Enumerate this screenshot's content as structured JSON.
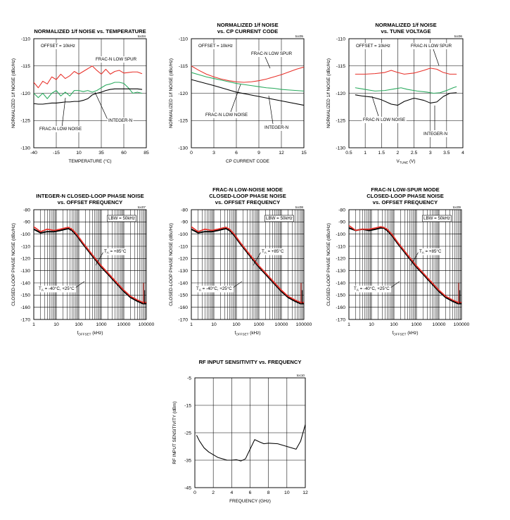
{
  "chart_data": [
    {
      "id": "toc04",
      "type": "line",
      "code": "toc04",
      "title_lines": [
        "NORMALIZED 1/f NOISE vs. TEMPERATURE"
      ],
      "xlabel": "TEMPERATURE (°C)",
      "ylabel": "NORMALIZED 1/f NOISE (dBc/Hz)",
      "x_ticks": [
        "-40",
        "-15",
        "10",
        "35",
        "60",
        "85"
      ],
      "y_ticks": [
        "-110",
        "-115",
        "-120",
        "-125",
        "-130"
      ],
      "xlim": [
        -40,
        85
      ],
      "ylim": [
        -130,
        -110
      ],
      "x_scale": "linear",
      "grid": true,
      "series": [
        {
          "name": "FRAC-N LOW SPUR",
          "color": "#e8312a",
          "x": [
            -40,
            -35,
            -30,
            -25,
            -20,
            -15,
            -10,
            -5,
            0,
            5,
            10,
            15,
            20,
            25,
            30,
            35,
            40,
            45,
            50,
            55,
            60,
            65,
            70,
            75,
            80
          ],
          "y": [
            -118,
            -119,
            -117.8,
            -118.3,
            -117,
            -117.5,
            -116.5,
            -117.3,
            -116.8,
            -116,
            -116.5,
            -116,
            -115.5,
            -115,
            -115.8,
            -116.5,
            -115.6,
            -116.5,
            -116,
            -115.8,
            -116.3,
            -116.2,
            -116.1,
            -116.1,
            -116.4
          ]
        },
        {
          "name": "FRAC-N LOW NOISE",
          "color": "#2aaa5e",
          "x": [
            -40,
            -35,
            -30,
            -25,
            -20,
            -15,
            -10,
            -5,
            0,
            5,
            10,
            15,
            20,
            25,
            30,
            35,
            40,
            45,
            50,
            55,
            60,
            65,
            70,
            75,
            80
          ],
          "y": [
            -120,
            -120.8,
            -120,
            -121,
            -120,
            -119.5,
            -120.5,
            -119.8,
            -120.5,
            -119.5,
            -119.5,
            -119.7,
            -119.5,
            -119.8,
            -119.5,
            -119,
            -118.5,
            -118.3,
            -118,
            -118,
            -118.2,
            -119,
            -120,
            -119.8,
            -120
          ]
        },
        {
          "name": "INTEGER-N",
          "color": "#000000",
          "x": [
            -40,
            -35,
            -30,
            -25,
            -20,
            -15,
            -10,
            -5,
            0,
            5,
            10,
            15,
            20,
            25,
            30,
            35,
            40,
            45,
            50,
            55,
            60,
            65,
            70,
            75,
            80
          ],
          "y": [
            -121.9,
            -122,
            -122,
            -121.9,
            -121.8,
            -121.8,
            -121.7,
            -121.6,
            -121.6,
            -121.5,
            -121.5,
            -121.3,
            -121,
            -120.3,
            -120,
            -119.8,
            -119.5,
            -119.3,
            -119.2,
            -119.2,
            -119.2,
            -119.2,
            -119.2,
            -119.2,
            -119.3
          ]
        }
      ],
      "annotations": [
        "OFFSET = 10kHz",
        "FRAC-N LOW SPUR",
        "FRAC-N LOW NOISE",
        "INTEGER-N"
      ]
    },
    {
      "id": "toc05",
      "type": "line",
      "code": "toc05",
      "title_lines": [
        "NORMALIZED 1/f NOISE",
        "vs. CP CURRENT CODE"
      ],
      "xlabel": "CP CURRENT CODE",
      "ylabel": "NORMALIZED 1/f NOISE (dBc/Hz)",
      "x_ticks": [
        "0",
        "3",
        "6",
        "9",
        "12",
        "15"
      ],
      "y_ticks": [
        "-110",
        "-115",
        "-120",
        "-125",
        "-130"
      ],
      "xlim": [
        0,
        15
      ],
      "ylim": [
        -130,
        -110
      ],
      "x_scale": "linear",
      "grid": true,
      "series": [
        {
          "name": "FRAC-N LOW SPUR",
          "color": "#e8312a",
          "x": [
            0,
            1,
            2,
            3,
            4,
            5,
            6,
            7,
            8,
            9,
            10,
            11,
            12,
            13,
            14,
            15
          ],
          "y": [
            -115,
            -115.8,
            -116.5,
            -117,
            -117.4,
            -117.7,
            -117.9,
            -118,
            -117.9,
            -117.7,
            -117.4,
            -117,
            -116.6,
            -116.1,
            -115.6,
            -115.2
          ]
        },
        {
          "name": "FRAC-N LOW NOISE",
          "color": "#2aaa5e",
          "x": [
            0,
            1,
            2,
            3,
            4,
            5,
            6,
            7,
            8,
            9,
            10,
            11,
            12,
            13,
            14,
            15
          ],
          "y": [
            -116.2,
            -116.6,
            -117,
            -117.3,
            -117.6,
            -117.9,
            -118.2,
            -118.4,
            -118.6,
            -118.8,
            -119,
            -119.1,
            -119.3,
            -119.4,
            -119.5,
            -119.6
          ]
        },
        {
          "name": "INTEGER-N",
          "color": "#000000",
          "x": [
            0,
            3,
            6,
            9,
            12,
            15
          ],
          "y": [
            -117.5,
            -118.6,
            -119.8,
            -120.6,
            -121.4,
            -122.2
          ]
        }
      ],
      "annotations": [
        "OFFSET = 10kHz",
        "FRAC-N LOW SPUR",
        "FRAC-N LOW NOISE",
        "INTEGER-N"
      ]
    },
    {
      "id": "toc06",
      "type": "line",
      "code": "toc06",
      "title_lines": [
        "NORMALIZED 1/f NOISE",
        "vs. TUNE VOLTAGE"
      ],
      "xlabel": "VTUNE (V)",
      "ylabel": "NORMALIZED 1/f NOISE (dBc/Hz)",
      "x_ticks": [
        "0.5",
        "1",
        "1.5",
        "2",
        "2.5",
        "3",
        "3.5",
        "4"
      ],
      "y_ticks": [
        "-110",
        "-115",
        "-120",
        "-125",
        "-130"
      ],
      "xlim": [
        0.5,
        4
      ],
      "ylim": [
        -130,
        -110
      ],
      "x_scale": "linear",
      "grid": true,
      "series": [
        {
          "name": "FRAC-N LOW SPUR",
          "color": "#e8312a",
          "x": [
            0.7,
            1.0,
            1.3,
            1.6,
            1.8,
            2.0,
            2.2,
            2.5,
            2.8,
            3.0,
            3.2,
            3.4,
            3.6,
            3.8
          ],
          "y": [
            -116.5,
            -116.5,
            -116.4,
            -116.2,
            -115.8,
            -116.2,
            -116.5,
            -116.3,
            -115.8,
            -115.4,
            -115.6,
            -116.2,
            -116.5,
            -116.5
          ]
        },
        {
          "name": "FRAC-N LOW NOISE",
          "color": "#2aaa5e",
          "x": [
            0.7,
            1.0,
            1.3,
            1.6,
            1.9,
            2.1,
            2.3,
            2.6,
            2.9,
            3.1,
            3.3,
            3.5,
            3.7,
            3.8
          ],
          "y": [
            -119,
            -119.3,
            -119.6,
            -119.5,
            -119.2,
            -119,
            -119.3,
            -119.6,
            -119.8,
            -120,
            -119.9,
            -119.5,
            -119,
            -118.8
          ]
        },
        {
          "name": "INTEGER-N",
          "color": "#000000",
          "x": [
            0.7,
            0.9,
            1.2,
            1.5,
            1.8,
            2.0,
            2.2,
            2.5,
            2.8,
            3.0,
            3.2,
            3.4,
            3.6,
            3.8
          ],
          "y": [
            -120.3,
            -120.5,
            -120.7,
            -121.2,
            -122,
            -122.2,
            -121.5,
            -120.9,
            -121.3,
            -121.8,
            -121.6,
            -120.6,
            -120,
            -119.9
          ]
        }
      ],
      "annotations": [
        "OFFSET = 10kHz",
        "FRAC-N LOW SPUR",
        "FRAC-N LOW NOISE",
        "INTEGER-N"
      ]
    },
    {
      "id": "toc07",
      "type": "line",
      "code": "toc07",
      "title_lines": [
        "INTEGER-N CLOSED-LOOP PHASE NOISE",
        "vs. OFFSET FREQUENCY"
      ],
      "xlabel": "fOFFSET (kHz)",
      "ylabel": "CLOSED-LOOP PHASE NOISE (dBc/Hz)",
      "x_ticks": [
        "1",
        "10",
        "100",
        "1000",
        "10000",
        "100000"
      ],
      "y_ticks": [
        "-80",
        "-90",
        "-100",
        "-110",
        "-120",
        "-130",
        "-140",
        "-150",
        "-160",
        "-170"
      ],
      "xlim": [
        1,
        100000
      ],
      "ylim": [
        -170,
        -80
      ],
      "x_scale": "log",
      "grid": true,
      "series": [
        {
          "name": "TA = -40°C, +25°C",
          "color": "#000000",
          "x": [
            1,
            2,
            4,
            8,
            15,
            25,
            35,
            50,
            80,
            150,
            300,
            600,
            1000,
            2000,
            5000,
            10000,
            20000,
            40000,
            70000,
            100000
          ],
          "y": [
            -96,
            -99,
            -98,
            -98,
            -97,
            -96,
            -95.5,
            -97,
            -101,
            -108,
            -115,
            -122,
            -127,
            -133,
            -141,
            -147,
            -152,
            -155,
            -157,
            -157
          ]
        },
        {
          "name": "TA = +85°C",
          "color": "#e8312a",
          "x": [
            1,
            2,
            4,
            8,
            15,
            25,
            35,
            50,
            80,
            150,
            300,
            600,
            1000,
            2000,
            5000,
            10000,
            20000,
            40000,
            70000,
            100000
          ],
          "y": [
            -94,
            -98,
            -96,
            -97,
            -96,
            -95,
            -94.5,
            -96,
            -100,
            -107,
            -114,
            -121,
            -126,
            -132,
            -140,
            -146,
            -151,
            -154,
            -156,
            -156
          ]
        }
      ],
      "annotations": [
        "LBW = 50kHz",
        "TA = +85°C",
        "TA = -40°C, +25°C"
      ]
    },
    {
      "id": "toc08",
      "type": "line",
      "code": "toc08",
      "title_lines": [
        "FRAC-N LOW-NOISE MODE",
        "CLOSED-LOOP PHASE NOISE",
        "vs. OFFSET FREQUENCY"
      ],
      "xlabel": "fOFFSET (kHz)",
      "ylabel": "CLOSED-LOOP PHASE NOISE (dBc/Hz)",
      "x_ticks": [
        "1",
        "10",
        "100",
        "1000",
        "10000",
        "100000"
      ],
      "y_ticks": [
        "-80",
        "-90",
        "-100",
        "-110",
        "-120",
        "-130",
        "-140",
        "-150",
        "-160",
        "-170"
      ],
      "xlim": [
        1,
        100000
      ],
      "ylim": [
        -170,
        -80
      ],
      "x_scale": "log",
      "grid": true,
      "series": [
        {
          "name": "TA = -40°C, +25°C",
          "color": "#000000",
          "x": [
            1,
            2,
            4,
            8,
            15,
            25,
            35,
            50,
            80,
            150,
            300,
            600,
            1000,
            2000,
            5000,
            10000,
            20000,
            40000,
            70000,
            100000
          ],
          "y": [
            -96,
            -99,
            -98,
            -98,
            -97,
            -96,
            -95.5,
            -97,
            -101,
            -108,
            -115,
            -122,
            -127,
            -133,
            -141,
            -147,
            -152,
            -155,
            -157,
            -157
          ]
        },
        {
          "name": "TA = +85°C",
          "color": "#e8312a",
          "x": [
            1,
            2,
            4,
            8,
            15,
            25,
            35,
            50,
            80,
            150,
            300,
            600,
            1000,
            2000,
            5000,
            10000,
            20000,
            40000,
            70000,
            100000
          ],
          "y": [
            -94,
            -98,
            -96,
            -97,
            -96,
            -95,
            -94.5,
            -96,
            -100,
            -107,
            -114,
            -121,
            -126,
            -132,
            -140,
            -146,
            -151,
            -154,
            -156,
            -156
          ]
        }
      ],
      "annotations": [
        "LBW = 50kHz",
        "TA = +85°C",
        "TA = -40°C, +25°C"
      ]
    },
    {
      "id": "toc09",
      "type": "line",
      "code": "toc09",
      "title_lines": [
        "FRAC-N LOW-SPUR MODE",
        "CLOSED-LOOP PHASE NOISE",
        "vs. OFFSET FREQUENCY"
      ],
      "xlabel": "fOFFSET (kHz)",
      "ylabel": "CLOSED-LOOP PHASE NOISE (dBc/Hz)",
      "x_ticks": [
        "1",
        "10",
        "100",
        "1000",
        "10000",
        "100000"
      ],
      "y_ticks": [
        "-80",
        "-90",
        "-100",
        "-110",
        "-120",
        "-130",
        "-140",
        "-150",
        "-160",
        "-170"
      ],
      "xlim": [
        1,
        100000
      ],
      "ylim": [
        -170,
        -80
      ],
      "x_scale": "log",
      "grid": true,
      "series": [
        {
          "name": "TA = -40°C, +25°C",
          "color": "#000000",
          "x": [
            1,
            2,
            4,
            8,
            15,
            25,
            35,
            50,
            80,
            150,
            300,
            600,
            1000,
            2000,
            5000,
            10000,
            20000,
            40000,
            70000,
            100000
          ],
          "y": [
            -95,
            -97,
            -96,
            -97,
            -96,
            -95,
            -95,
            -97,
            -101,
            -108,
            -115,
            -122,
            -127,
            -133,
            -141,
            -147,
            -152,
            -155,
            -157,
            -157
          ]
        },
        {
          "name": "TA = +85°C",
          "color": "#e8312a",
          "x": [
            1,
            2,
            4,
            8,
            15,
            25,
            35,
            50,
            80,
            150,
            300,
            600,
            1000,
            2000,
            5000,
            10000,
            20000,
            40000,
            70000,
            100000
          ],
          "y": [
            -93,
            -97,
            -96,
            -96,
            -95,
            -94,
            -94.5,
            -96,
            -100,
            -107,
            -114,
            -121,
            -126,
            -132,
            -140,
            -146,
            -151,
            -154,
            -156,
            -156
          ]
        }
      ],
      "annotations": [
        "LBW = 50kHz",
        "TA = +85°C",
        "TA = -40°C, +25°C"
      ]
    },
    {
      "id": "toc10",
      "type": "line",
      "code": "toc10",
      "title_lines": [
        "RF INPUT SENSITIVITY vs. FREQUENCY"
      ],
      "xlabel": "FREQUENCY (GHz)",
      "ylabel": "RF INPUT SENSITIVITY (dBm)",
      "x_ticks": [
        "0",
        "2",
        "4",
        "6",
        "8",
        "10",
        "12"
      ],
      "y_ticks": [
        "-5",
        "-15",
        "-25",
        "-35",
        "-45"
      ],
      "xlim": [
        0,
        12
      ],
      "ylim": [
        -45,
        -5
      ],
      "x_scale": "linear",
      "grid": true,
      "series": [
        {
          "name": "",
          "color": "#000000",
          "x": [
            0.2,
            0.5,
            1,
            1.5,
            2,
            2.5,
            3,
            3.5,
            4,
            4.5,
            5,
            5.5,
            6,
            6.5,
            7,
            7.5,
            8,
            9,
            10,
            11,
            11.5,
            12
          ],
          "y": [
            -26,
            -28,
            -30.5,
            -32,
            -33,
            -34,
            -34.5,
            -35,
            -35,
            -34.8,
            -35.3,
            -34.5,
            -31,
            -27.5,
            -28.3,
            -29,
            -28.8,
            -29,
            -30,
            -31,
            -28,
            -22
          ]
        }
      ],
      "annotations": []
    }
  ]
}
